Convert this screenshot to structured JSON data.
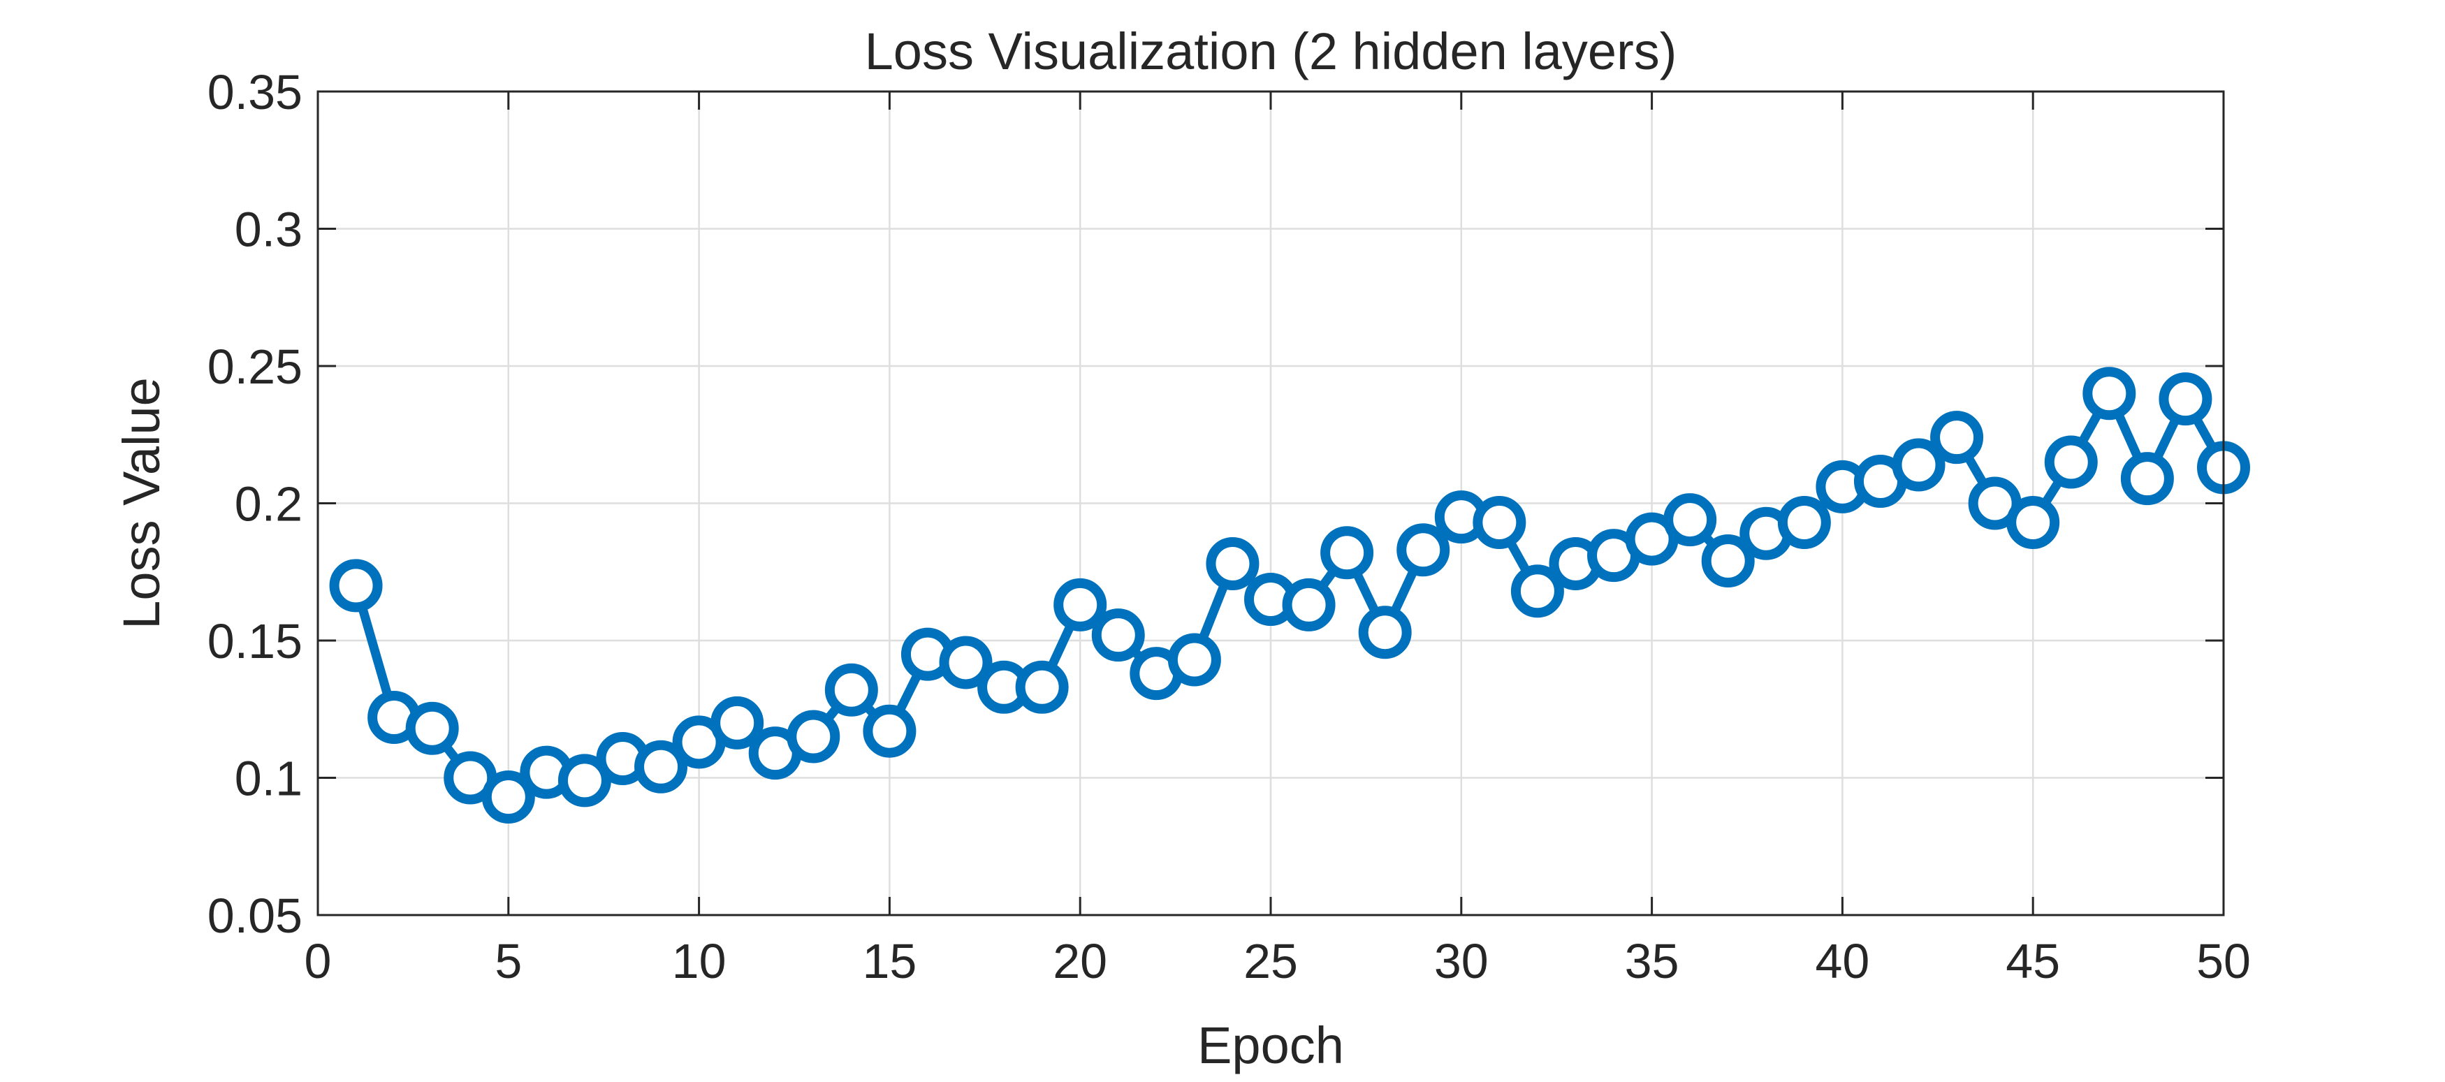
{
  "chart_data": {
    "type": "line",
    "title": "Loss Visualization (2 hidden layers)",
    "xlabel": "Epoch",
    "ylabel": "Loss Value",
    "xlim": [
      0,
      50
    ],
    "ylim": [
      0.05,
      0.35
    ],
    "xticks": [
      0,
      5,
      10,
      15,
      20,
      25,
      30,
      35,
      40,
      45,
      50
    ],
    "xtick_labels": [
      "0",
      "5",
      "10",
      "15",
      "20",
      "25",
      "30",
      "35",
      "40",
      "45",
      "50"
    ],
    "yticks": [
      0.05,
      0.1,
      0.15,
      0.2,
      0.25,
      0.3,
      0.35
    ],
    "ytick_labels": [
      "0.05",
      "0.1",
      "0.15",
      "0.2",
      "0.25",
      "0.3",
      "0.35"
    ],
    "grid": true,
    "marker": "circle",
    "series": [
      {
        "color": "#0072BD",
        "x": [
          1,
          2,
          3,
          4,
          5,
          6,
          7,
          8,
          9,
          10,
          11,
          12,
          13,
          14,
          15,
          16,
          17,
          18,
          19,
          20,
          21,
          22,
          23,
          24,
          25,
          26,
          27,
          28,
          29,
          30,
          31,
          32,
          33,
          34,
          35,
          36,
          37,
          38,
          39,
          40,
          41,
          42,
          43,
          44,
          45,
          46,
          47,
          48,
          49,
          50
        ],
        "y": [
          0.17,
          0.122,
          0.118,
          0.1,
          0.093,
          0.102,
          0.099,
          0.107,
          0.104,
          0.113,
          0.12,
          0.109,
          0.115,
          0.132,
          0.117,
          0.145,
          0.142,
          0.133,
          0.133,
          0.163,
          0.152,
          0.138,
          0.143,
          0.178,
          0.165,
          0.163,
          0.182,
          0.153,
          0.183,
          0.195,
          0.193,
          0.168,
          0.178,
          0.181,
          0.187,
          0.194,
          0.179,
          0.189,
          0.193,
          0.206,
          0.208,
          0.214,
          0.224,
          0.2,
          0.193,
          0.215,
          0.24,
          0.209,
          0.238,
          0.213
        ]
      }
    ]
  }
}
